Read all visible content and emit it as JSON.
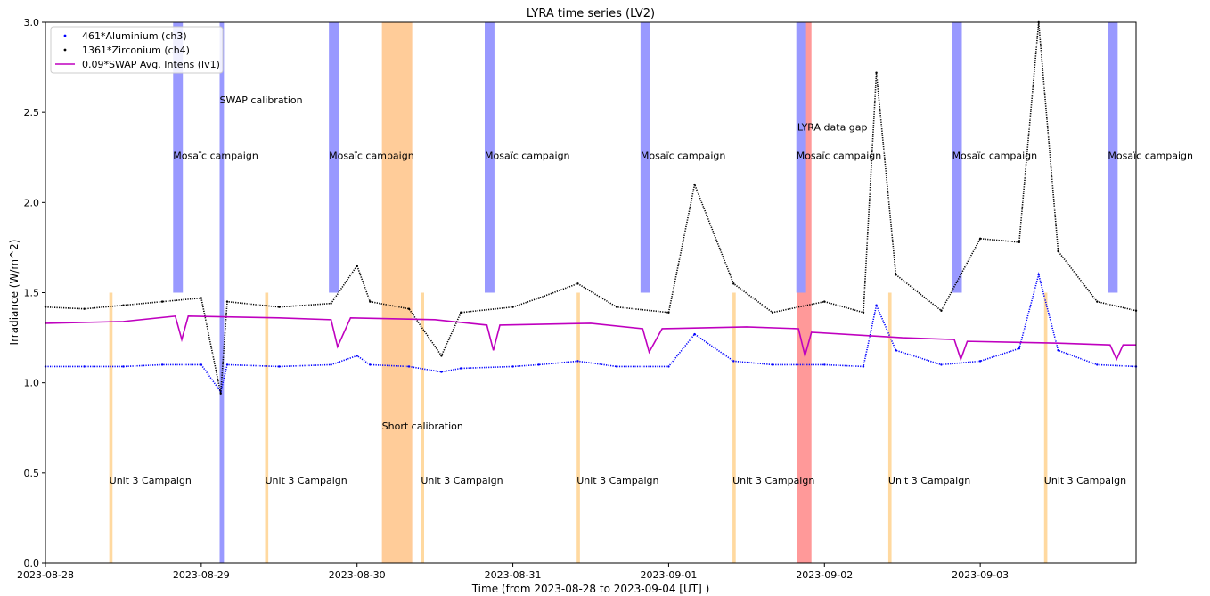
{
  "chart_data": {
    "type": "line",
    "title": "LYRA time series (LV2)",
    "xlabel": "Time (from 2023-08-28 to 2023-09-04 [UT] )",
    "ylabel": "Irradiance (W/m^2)",
    "xlim": [
      "2023-08-28T00:00",
      "2023-09-04T00:00"
    ],
    "ylim": [
      0,
      3.0
    ],
    "x_ticks": [
      "2023-08-28",
      "2023-08-29",
      "2023-08-30",
      "2023-08-31",
      "2023-09-01",
      "2023-09-02",
      "2023-09-03"
    ],
    "y_ticks": [
      "0.0",
      "0.5",
      "1.0",
      "1.5",
      "2.0",
      "2.5",
      "3.0"
    ],
    "grid": false,
    "legend": "top-left",
    "series": [
      {
        "name": "461*Aluminium (ch3)",
        "color": "#0000ff",
        "style": "dots",
        "points": [
          [
            "2023-08-28T00:00",
            1.09
          ],
          [
            "2023-08-28T06:00",
            1.09
          ],
          [
            "2023-08-28T12:00",
            1.09
          ],
          [
            "2023-08-28T18:00",
            1.1
          ],
          [
            "2023-08-29T00:00",
            1.1
          ],
          [
            "2023-08-29T03:00",
            0.95
          ],
          [
            "2023-08-29T04:00",
            1.1
          ],
          [
            "2023-08-29T12:00",
            1.09
          ],
          [
            "2023-08-29T20:00",
            1.1
          ],
          [
            "2023-08-30T00:00",
            1.15
          ],
          [
            "2023-08-30T02:00",
            1.1
          ],
          [
            "2023-08-30T08:00",
            1.09
          ],
          [
            "2023-08-30T13:00",
            1.06
          ],
          [
            "2023-08-30T16:00",
            1.08
          ],
          [
            "2023-08-31T00:00",
            1.09
          ],
          [
            "2023-08-31T04:00",
            1.1
          ],
          [
            "2023-08-31T10:00",
            1.12
          ],
          [
            "2023-08-31T16:00",
            1.09
          ],
          [
            "2023-09-01T00:00",
            1.09
          ],
          [
            "2023-09-01T04:00",
            1.27
          ],
          [
            "2023-09-01T10:00",
            1.12
          ],
          [
            "2023-09-01T16:00",
            1.1
          ],
          [
            "2023-09-02T00:00",
            1.1
          ],
          [
            "2023-09-02T06:00",
            1.09
          ],
          [
            "2023-09-02T08:00",
            1.43
          ],
          [
            "2023-09-02T11:00",
            1.18
          ],
          [
            "2023-09-02T18:00",
            1.1
          ],
          [
            "2023-09-03T00:00",
            1.12
          ],
          [
            "2023-09-03T06:00",
            1.19
          ],
          [
            "2023-09-03T09:00",
            1.6
          ],
          [
            "2023-09-03T12:00",
            1.18
          ],
          [
            "2023-09-03T18:00",
            1.1
          ],
          [
            "2023-09-04T00:00",
            1.09
          ]
        ]
      },
      {
        "name": "1361*Zirconium (ch4)",
        "color": "#000000",
        "style": "dots",
        "points": [
          [
            "2023-08-28T00:00",
            1.42
          ],
          [
            "2023-08-28T06:00",
            1.41
          ],
          [
            "2023-08-28T12:00",
            1.43
          ],
          [
            "2023-08-28T18:00",
            1.45
          ],
          [
            "2023-08-29T00:00",
            1.47
          ],
          [
            "2023-08-29T03:00",
            0.94
          ],
          [
            "2023-08-29T04:00",
            1.45
          ],
          [
            "2023-08-29T12:00",
            1.42
          ],
          [
            "2023-08-29T20:00",
            1.44
          ],
          [
            "2023-08-30T00:00",
            1.65
          ],
          [
            "2023-08-30T02:00",
            1.45
          ],
          [
            "2023-08-30T08:00",
            1.41
          ],
          [
            "2023-08-30T13:00",
            1.15
          ],
          [
            "2023-08-30T16:00",
            1.39
          ],
          [
            "2023-08-31T00:00",
            1.42
          ],
          [
            "2023-08-31T04:00",
            1.47
          ],
          [
            "2023-08-31T10:00",
            1.55
          ],
          [
            "2023-08-31T16:00",
            1.42
          ],
          [
            "2023-09-01T00:00",
            1.39
          ],
          [
            "2023-09-01T04:00",
            2.1
          ],
          [
            "2023-09-01T10:00",
            1.55
          ],
          [
            "2023-09-01T16:00",
            1.39
          ],
          [
            "2023-09-02T00:00",
            1.45
          ],
          [
            "2023-09-02T06:00",
            1.39
          ],
          [
            "2023-09-02T08:00",
            2.72
          ],
          [
            "2023-09-02T11:00",
            1.6
          ],
          [
            "2023-09-02T18:00",
            1.4
          ],
          [
            "2023-09-03T00:00",
            1.8
          ],
          [
            "2023-09-03T06:00",
            1.78
          ],
          [
            "2023-09-03T09:00",
            3.0
          ],
          [
            "2023-09-03T12:00",
            1.73
          ],
          [
            "2023-09-03T18:00",
            1.45
          ],
          [
            "2023-09-04T00:00",
            1.4
          ]
        ]
      },
      {
        "name": "0.09*SWAP Avg. Intens (lv1)",
        "color": "#bf00bf",
        "style": "line",
        "points": [
          [
            "2023-08-28T00:00",
            1.33
          ],
          [
            "2023-08-28T12:00",
            1.34
          ],
          [
            "2023-08-28T20:00",
            1.37
          ],
          [
            "2023-08-28T21:00",
            1.24
          ],
          [
            "2023-08-28T22:00",
            1.37
          ],
          [
            "2023-08-29T12:00",
            1.36
          ],
          [
            "2023-08-29T20:00",
            1.35
          ],
          [
            "2023-08-29T21:00",
            1.2
          ],
          [
            "2023-08-29T23:00",
            1.36
          ],
          [
            "2023-08-30T12:00",
            1.35
          ],
          [
            "2023-08-30T20:00",
            1.32
          ],
          [
            "2023-08-30T21:00",
            1.18
          ],
          [
            "2023-08-30T22:00",
            1.32
          ],
          [
            "2023-08-31T12:00",
            1.33
          ],
          [
            "2023-08-31T20:00",
            1.3
          ],
          [
            "2023-08-31T21:00",
            1.17
          ],
          [
            "2023-08-31T23:00",
            1.3
          ],
          [
            "2023-09-01T12:00",
            1.31
          ],
          [
            "2023-09-01T20:00",
            1.3
          ],
          [
            "2023-09-01T21:00",
            1.15
          ],
          [
            "2023-09-01T22:00",
            1.28
          ],
          [
            "2023-09-02T12:00",
            1.25
          ],
          [
            "2023-09-02T20:00",
            1.24
          ],
          [
            "2023-09-02T21:00",
            1.13
          ],
          [
            "2023-09-02T22:00",
            1.23
          ],
          [
            "2023-09-03T12:00",
            1.22
          ],
          [
            "2023-09-03T20:00",
            1.21
          ],
          [
            "2023-09-03T21:00",
            1.13
          ],
          [
            "2023-09-03T22:00",
            1.21
          ],
          [
            "2023-09-04T00:00",
            1.21
          ]
        ]
      }
    ],
    "annotations": [
      {
        "label": "SWAP calibration",
        "start": "2023-08-29T02:50",
        "end": "2023-08-29T03:30",
        "color": "#9999ff",
        "y_range": [
          0,
          3.0
        ],
        "label_y": 2.57
      },
      {
        "label": "Short calibration",
        "start": "2023-08-30T03:50",
        "end": "2023-08-30T08:30",
        "color": "#ffcc99",
        "y_range": [
          0,
          3.0
        ],
        "label_y": 0.76
      },
      {
        "label": "LYRA data gap",
        "start": "2023-09-01T19:50",
        "end": "2023-09-01T22:00",
        "color": "#ff9999",
        "y_range": [
          0,
          3.0
        ],
        "label_y": 2.42
      },
      {
        "label": "Mosaïc campaign",
        "start": "2023-08-28T19:40",
        "end": "2023-08-28T21:10",
        "color": "#9999ff",
        "y_range": [
          1.5,
          3.0
        ],
        "label_y": 2.26
      },
      {
        "label": "Mosaïc campaign",
        "start": "2023-08-29T19:40",
        "end": "2023-08-29T21:10",
        "color": "#9999ff",
        "y_range": [
          1.5,
          3.0
        ],
        "label_y": 2.26
      },
      {
        "label": "Mosaïc campaign",
        "start": "2023-08-30T19:40",
        "end": "2023-08-30T21:10",
        "color": "#9999ff",
        "y_range": [
          1.5,
          3.0
        ],
        "label_y": 2.26
      },
      {
        "label": "Mosaïc campaign",
        "start": "2023-08-31T19:40",
        "end": "2023-08-31T21:10",
        "color": "#9999ff",
        "y_range": [
          1.5,
          3.0
        ],
        "label_y": 2.26
      },
      {
        "label": "Mosaïc campaign",
        "start": "2023-09-01T19:40",
        "end": "2023-09-01T21:10",
        "color": "#9999ff",
        "y_range": [
          1.5,
          3.0
        ],
        "label_y": 2.26
      },
      {
        "label": "Mosaïc campaign",
        "start": "2023-09-02T19:40",
        "end": "2023-09-02T21:10",
        "color": "#9999ff",
        "y_range": [
          1.5,
          3.0
        ],
        "label_y": 2.26
      },
      {
        "label": "Mosaïc campaign",
        "start": "2023-09-03T19:40",
        "end": "2023-09-03T21:10",
        "color": "#9999ff",
        "y_range": [
          1.5,
          3.0
        ],
        "label_y": 2.26
      },
      {
        "label": "Unit 3 Campaign",
        "start": "2023-08-28T09:50",
        "end": "2023-08-28T10:20",
        "color": "#ffd9a0",
        "y_range": [
          0,
          1.5
        ],
        "label_y": 0.46
      },
      {
        "label": "Unit 3 Campaign",
        "start": "2023-08-29T09:50",
        "end": "2023-08-29T10:20",
        "color": "#ffd9a0",
        "y_range": [
          0,
          1.5
        ],
        "label_y": 0.46
      },
      {
        "label": "Unit 3 Campaign",
        "start": "2023-08-30T09:50",
        "end": "2023-08-30T10:20",
        "color": "#ffd9a0",
        "y_range": [
          0,
          1.5
        ],
        "label_y": 0.46
      },
      {
        "label": "Unit 3 Campaign",
        "start": "2023-08-31T09:50",
        "end": "2023-08-31T10:20",
        "color": "#ffd9a0",
        "y_range": [
          0,
          1.5
        ],
        "label_y": 0.46
      },
      {
        "label": "Unit 3 Campaign",
        "start": "2023-09-01T09:50",
        "end": "2023-09-01T10:20",
        "color": "#ffd9a0",
        "y_range": [
          0,
          1.5
        ],
        "label_y": 0.46
      },
      {
        "label": "Unit 3 Campaign",
        "start": "2023-09-02T09:50",
        "end": "2023-09-02T10:20",
        "color": "#ffd9a0",
        "y_range": [
          0,
          1.5
        ],
        "label_y": 0.46
      },
      {
        "label": "Unit 3 Campaign",
        "start": "2023-09-03T09:50",
        "end": "2023-09-03T10:20",
        "color": "#ffd9a0",
        "y_range": [
          0,
          1.5
        ],
        "label_y": 0.46
      }
    ]
  }
}
